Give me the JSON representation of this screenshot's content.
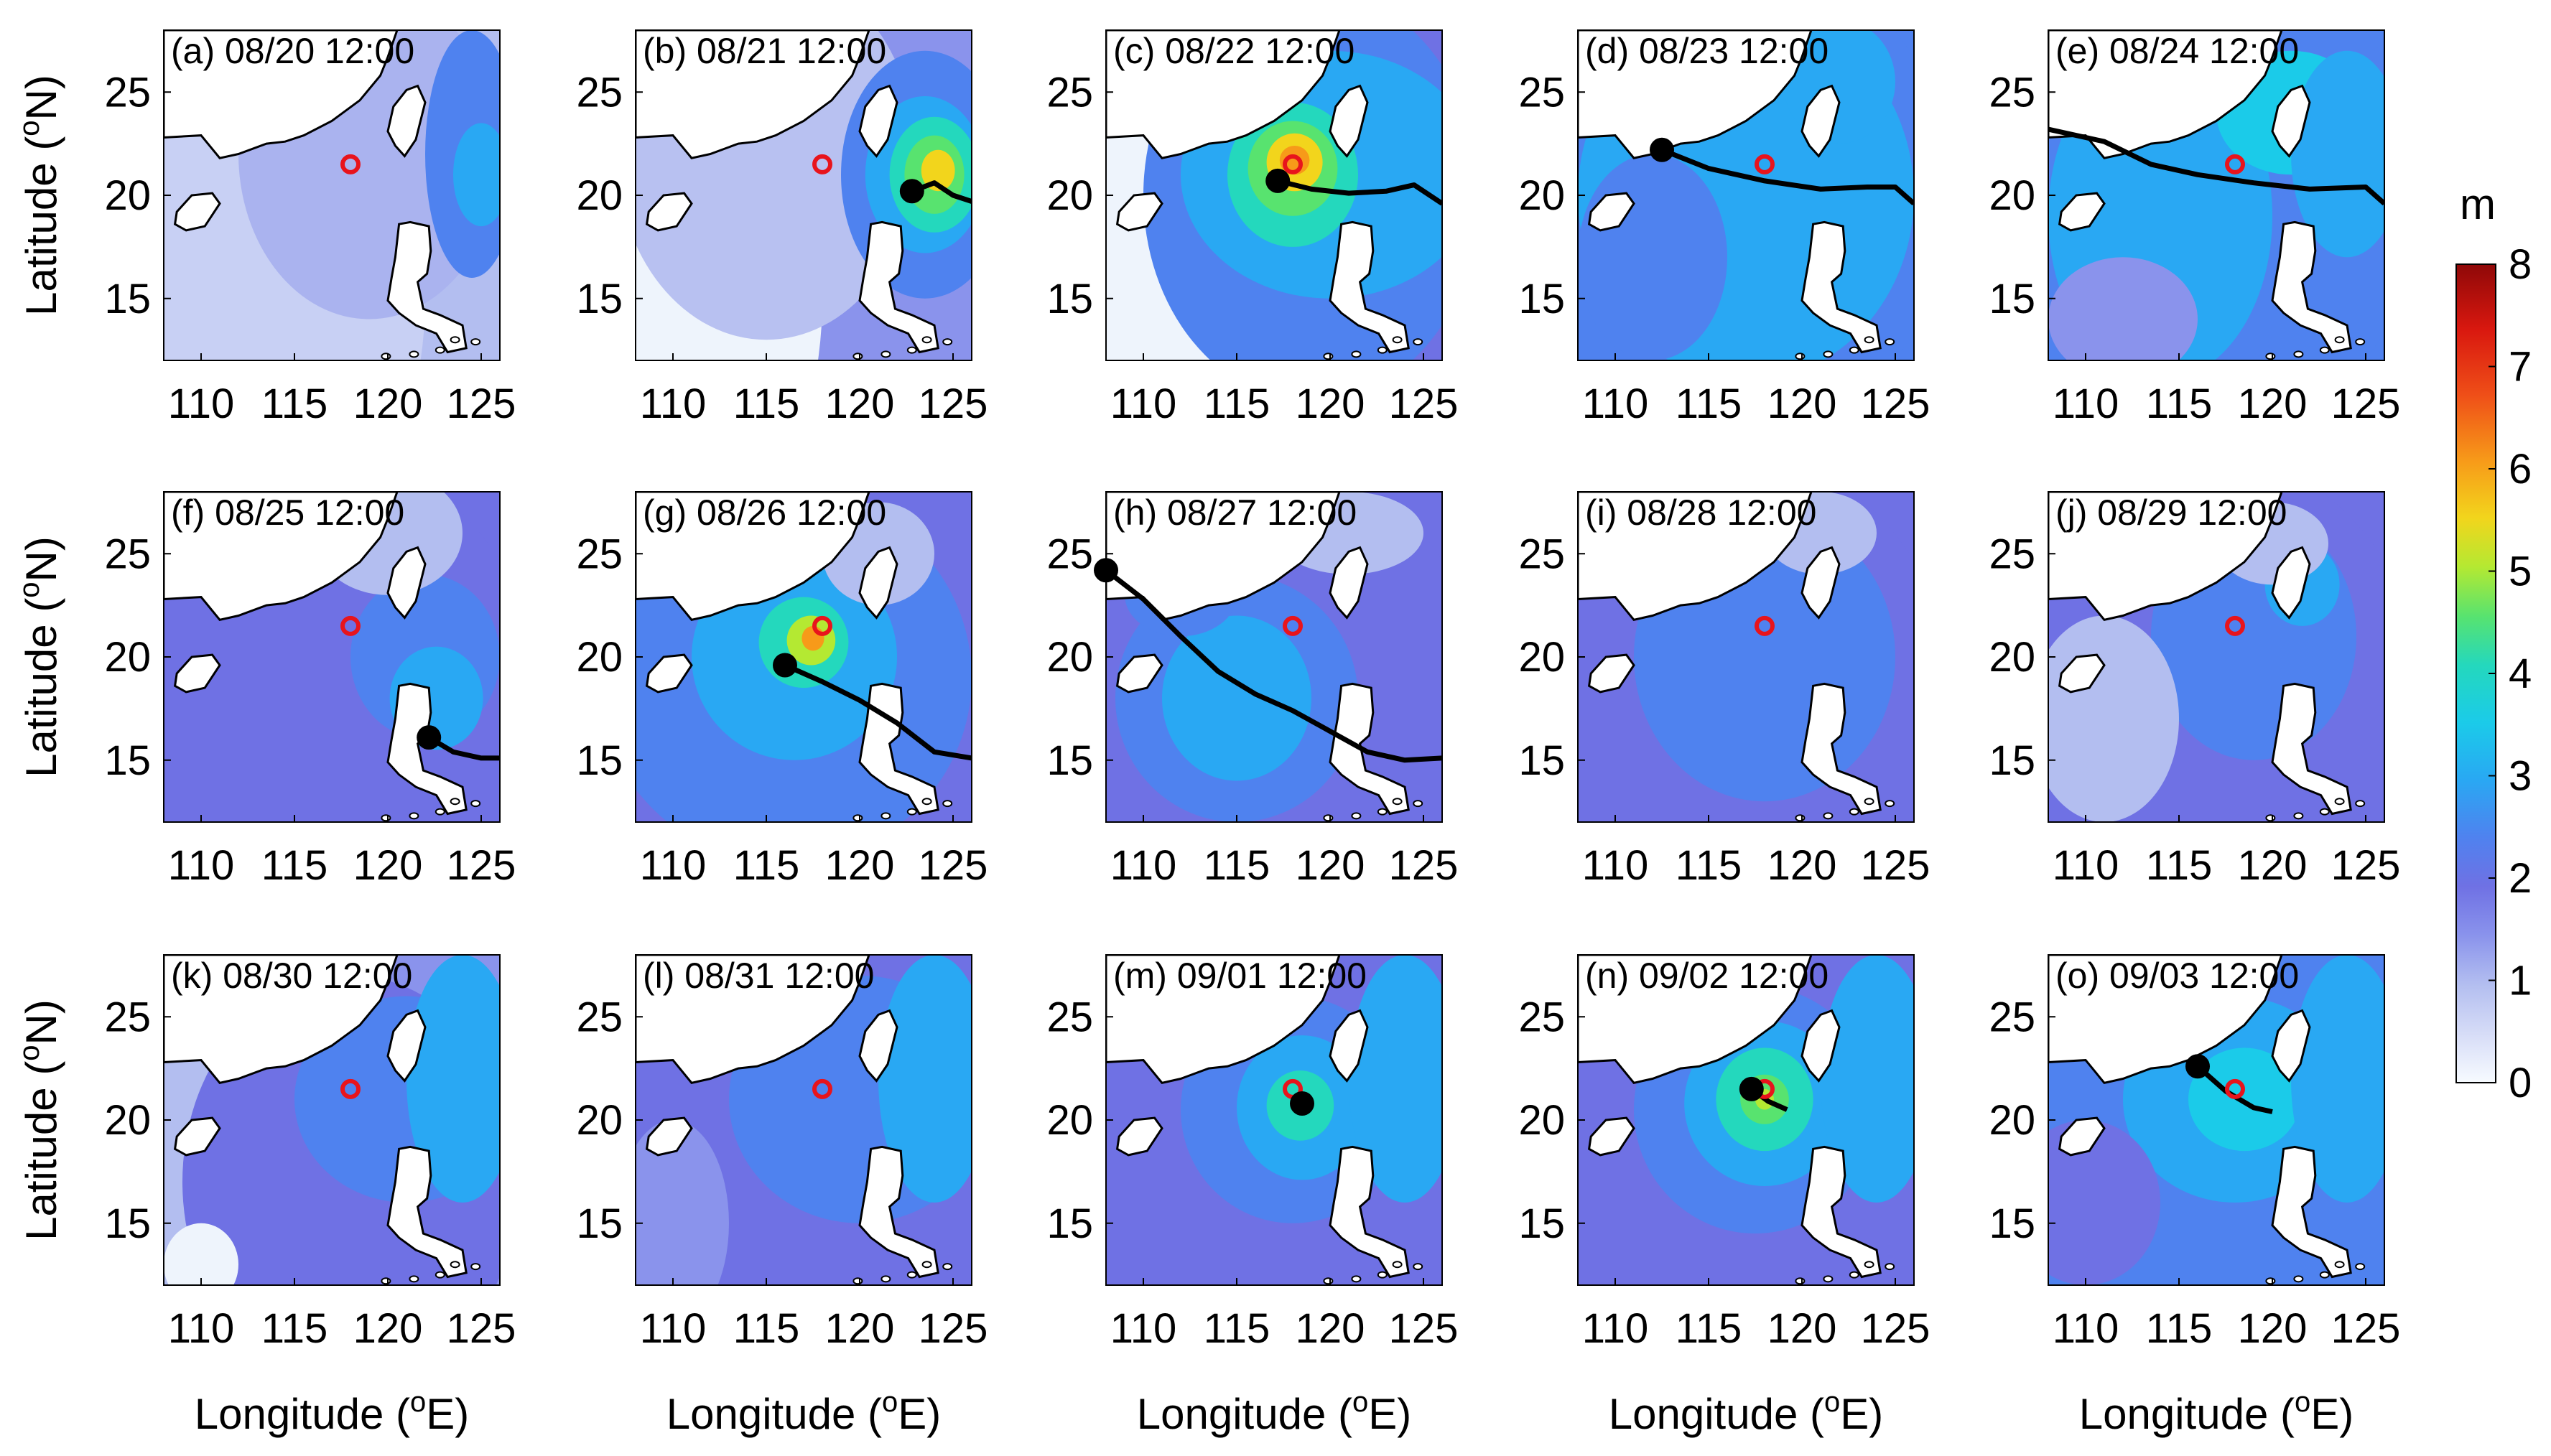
{
  "figure": {
    "x_axis_label": {
      "main": "Longitude (",
      "sup": "o",
      "unit": "E)"
    },
    "y_axis_label": {
      "main": "Latitude (",
      "sup": "o",
      "unit": "N)"
    },
    "x_ticks": [
      "110",
      "115",
      "120",
      "125"
    ],
    "y_ticks": [
      "15",
      "20",
      "25"
    ],
    "x_range": [
      108,
      126
    ],
    "y_range": [
      12,
      28
    ]
  },
  "colorbar": {
    "unit": "m",
    "min": 0,
    "max": 8,
    "ticks": [
      "0",
      "1",
      "2",
      "3",
      "4",
      "5",
      "6",
      "7",
      "8"
    ],
    "colors": [
      "#f7fbff",
      "#d6dcf7",
      "#b3bef0",
      "#8a93ec",
      "#6f71e4",
      "#4f82ef",
      "#29a8f3",
      "#1bcbe9",
      "#24d8bd",
      "#58e36f",
      "#b4e932",
      "#f2d51c",
      "#f79a19",
      "#ef4f18",
      "#d9180f",
      "#8f0808"
    ]
  },
  "station": {
    "lon": 118,
    "lat": 21.5,
    "color": "#e8141c"
  },
  "panels": [
    {
      "id": "a",
      "label": "(a) 08/20 12:00",
      "track": [],
      "center": null
    },
    {
      "id": "b",
      "label": "(b) 08/21 12:00",
      "track": [
        [
          122.8,
          20.2
        ],
        [
          124,
          20.6
        ],
        [
          125,
          20
        ],
        [
          126,
          19.7
        ]
      ],
      "center": [
        122.8,
        20.2
      ]
    },
    {
      "id": "c",
      "label": "(c) 08/22 12:00",
      "track": [
        [
          117.2,
          20.7
        ],
        [
          119,
          20.3
        ],
        [
          121,
          20.1
        ],
        [
          123,
          20.2
        ],
        [
          124.5,
          20.5
        ],
        [
          126,
          19.6
        ]
      ],
      "center": [
        117.2,
        20.7
      ]
    },
    {
      "id": "d",
      "label": "(d) 08/23 12:00",
      "track": [
        [
          112.5,
          22.2
        ],
        [
          115,
          21.3
        ],
        [
          118,
          20.7
        ],
        [
          121,
          20.3
        ],
        [
          123.5,
          20.4
        ],
        [
          125,
          20.4
        ],
        [
          126,
          19.6
        ]
      ],
      "center": [
        112.5,
        22.2
      ]
    },
    {
      "id": "e",
      "label": "(e) 08/24 12:00",
      "track": [
        [
          108,
          23.2
        ],
        [
          111,
          22.6
        ],
        [
          113.5,
          21.5
        ],
        [
          116,
          21
        ],
        [
          119,
          20.6
        ],
        [
          122,
          20.3
        ],
        [
          125,
          20.4
        ],
        [
          126,
          19.6
        ]
      ],
      "center": null
    },
    {
      "id": "f",
      "label": "(f) 08/25 12:00",
      "track": [
        [
          122.2,
          16.1
        ],
        [
          123.5,
          15.4
        ],
        [
          125,
          15.1
        ],
        [
          126,
          15.1
        ]
      ],
      "center": [
        122.2,
        16.1
      ]
    },
    {
      "id": "g",
      "label": "(g) 08/26 12:00",
      "track": [
        [
          116,
          19.6
        ],
        [
          118,
          18.8
        ],
        [
          120,
          17.9
        ],
        [
          122,
          16.8
        ],
        [
          124,
          15.4
        ],
        [
          126,
          15.1
        ]
      ],
      "center": [
        116,
        19.6
      ]
    },
    {
      "id": "h",
      "label": "(h) 08/27 12:00",
      "track": [
        [
          108,
          24.2
        ],
        [
          110,
          22.8
        ],
        [
          112,
          21
        ],
        [
          114,
          19.3
        ],
        [
          116,
          18.2
        ],
        [
          118,
          17.4
        ],
        [
          120,
          16.4
        ],
        [
          122,
          15.4
        ],
        [
          124,
          15
        ],
        [
          126,
          15.1
        ]
      ],
      "center": [
        108,
        24.2
      ]
    },
    {
      "id": "i",
      "label": "(i) 08/28 12:00",
      "track": [],
      "center": null
    },
    {
      "id": "j",
      "label": "(j) 08/29 12:00",
      "track": [],
      "center": null
    },
    {
      "id": "k",
      "label": "(k) 08/30 12:00",
      "track": [],
      "center": null
    },
    {
      "id": "l",
      "label": "(l) 08/31 12:00",
      "track": [],
      "center": null
    },
    {
      "id": "m",
      "label": "(m) 09/01 12:00",
      "track": [
        [
          118.5,
          20.8
        ],
        [
          119,
          20.6
        ]
      ],
      "center": [
        118.5,
        20.8
      ]
    },
    {
      "id": "n",
      "label": "(n) 09/02 12:00",
      "track": [
        [
          117.3,
          21.5
        ],
        [
          118.2,
          20.9
        ],
        [
          119.2,
          20.5
        ]
      ],
      "center": [
        117.3,
        21.5
      ]
    },
    {
      "id": "o",
      "label": "(o) 09/03 12:00",
      "track": [
        [
          116,
          22.6
        ],
        [
          117.5,
          21.4
        ],
        [
          119,
          20.6
        ],
        [
          120,
          20.4
        ]
      ],
      "center": [
        116,
        22.6
      ]
    }
  ]
}
